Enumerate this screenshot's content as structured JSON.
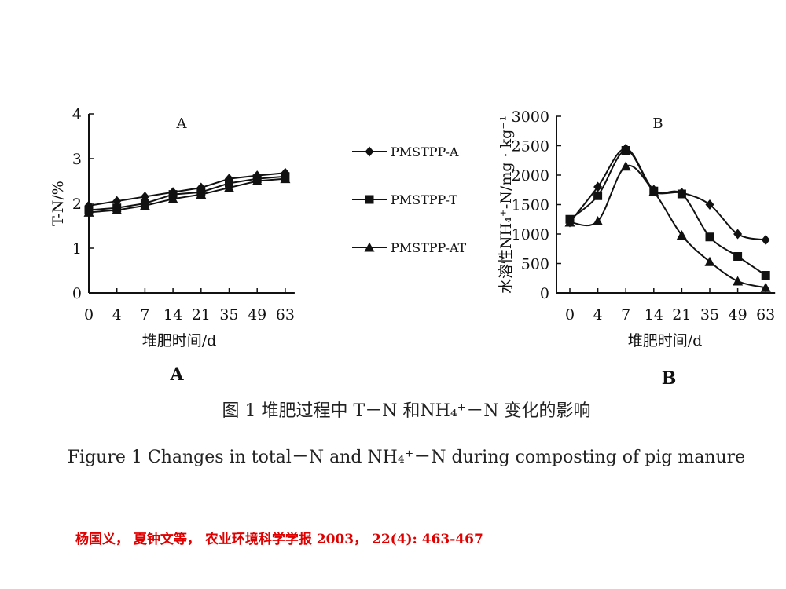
{
  "caption_cn": "图 1  堆肥过程中 T－N 和NH₄⁺－N 变化的影响",
  "caption_en": "Figure 1   Changes in total－N and NH₄⁺－N during composting of pig manure",
  "citation": "杨国义， 夏钟文等， 农业环境科学学报  2003，  22(4): 463-467",
  "legend": [
    "PMSTPP-A",
    "PMSTPP-T",
    "PMSTPP-AT"
  ],
  "chart_data": [
    {
      "type": "line",
      "panel_label": "A",
      "sub_label": "A",
      "categories": [
        "0",
        "4",
        "7",
        "14",
        "21",
        "35",
        "49",
        "63"
      ],
      "xlabel": "堆肥时间/d",
      "ylabel": "T-N/%",
      "ylim": [
        0,
        4
      ],
      "yticks": [
        "0",
        "1",
        "2",
        "3",
        "4"
      ],
      "series": [
        {
          "name": "PMSTPP-A",
          "marker": "diamond",
          "values": [
            1.95,
            2.05,
            2.15,
            2.25,
            2.35,
            2.55,
            2.62,
            2.68
          ]
        },
        {
          "name": "PMSTPP-T",
          "marker": "square",
          "values": [
            1.85,
            1.9,
            2.0,
            2.2,
            2.25,
            2.45,
            2.55,
            2.6
          ]
        },
        {
          "name": "PMSTPP-AT",
          "marker": "triangle",
          "values": [
            1.8,
            1.85,
            1.95,
            2.1,
            2.2,
            2.35,
            2.5,
            2.55
          ]
        }
      ]
    },
    {
      "type": "line",
      "panel_label": "B",
      "sub_label": "B",
      "categories": [
        "0",
        "4",
        "7",
        "14",
        "21",
        "35",
        "49",
        "63"
      ],
      "xlabel": "堆肥时间/d",
      "ylabel": "水溶性NH₄⁺-N/mg · kg⁻¹",
      "ylim": [
        0,
        3000
      ],
      "yticks": [
        "0",
        "500",
        "1000",
        "1500",
        "2000",
        "2500",
        "3000"
      ],
      "series": [
        {
          "name": "PMSTPP-A",
          "marker": "diamond",
          "values": [
            1200,
            1800,
            2450,
            1750,
            1700,
            1500,
            1000,
            900
          ]
        },
        {
          "name": "PMSTPP-T",
          "marker": "square",
          "values": [
            1250,
            1650,
            2420,
            1730,
            1680,
            950,
            620,
            300
          ]
        },
        {
          "name": "PMSTPP-AT",
          "marker": "triangle",
          "values": [
            1200,
            1220,
            2150,
            1720,
            980,
            530,
            200,
            90
          ]
        }
      ]
    }
  ]
}
